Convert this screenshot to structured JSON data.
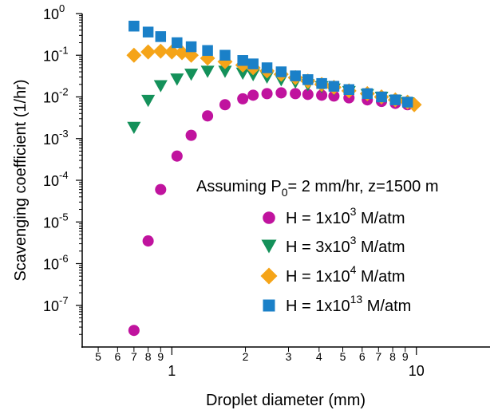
{
  "chart_data": {
    "type": "scatter",
    "xlabel": "Droplet diameter (mm)",
    "ylabel": "Scavenging coefficient (1/hr)",
    "xscale": "log",
    "yscale": "log",
    "xlim": [
      0.43,
      20
    ],
    "ylim": [
      1e-08,
      1
    ],
    "x_major_tick_labels": [
      "1",
      "10"
    ],
    "x_minor_tick_labels": [
      "5",
      "6",
      "7",
      "8",
      "9",
      "2",
      "3",
      "4",
      "5",
      "6",
      "7",
      "8",
      "9"
    ],
    "y_tick_labels": [
      {
        "base": "10",
        "exp": "0"
      },
      {
        "base": "10",
        "exp": "-1"
      },
      {
        "base": "10",
        "exp": "-2"
      },
      {
        "base": "10",
        "exp": "-3"
      },
      {
        "base": "10",
        "exp": "-4"
      },
      {
        "base": "10",
        "exp": "-5"
      },
      {
        "base": "10",
        "exp": "-6"
      },
      {
        "base": "10",
        "exp": "-7"
      }
    ],
    "grid": false,
    "annotation": {
      "prefix": "Assuming P",
      "sub": "0",
      "suffix": "= 2 mm/hr, z=1500 m"
    },
    "legend_placement": "lower-right",
    "series": [
      {
        "label_pre": "H = 1x10",
        "label_exp": "3",
        "label_post": " M/atm",
        "color": "#c0139e",
        "marker": "circle",
        "x": [
          0.7,
          0.8,
          0.9,
          1.05,
          1.2,
          1.4,
          1.65,
          1.95,
          2.15,
          2.45,
          2.8,
          3.2,
          3.6,
          4.1,
          4.6,
          5.3,
          6.3,
          7.2,
          8.2,
          9.2
        ],
        "y": [
          2.5e-08,
          3.5e-06,
          6e-05,
          0.00038,
          0.0012,
          0.0035,
          0.0065,
          0.009,
          0.011,
          0.012,
          0.0125,
          0.012,
          0.0115,
          0.011,
          0.0105,
          0.0095,
          0.0085,
          0.0078,
          0.007,
          0.0065
        ]
      },
      {
        "label_pre": "H = 3x10",
        "label_exp": "3",
        "label_post": " M/atm",
        "color": "#14915a",
        "marker": "triangle-down",
        "x": [
          0.7,
          0.8,
          0.9,
          1.05,
          1.2,
          1.4,
          1.65,
          1.95,
          2.15,
          2.45,
          2.8,
          3.2,
          3.6,
          4.1,
          4.6,
          5.3,
          6.3,
          7.2,
          8.2,
          9.2
        ],
        "y": [
          0.0018,
          0.008,
          0.018,
          0.026,
          0.034,
          0.04,
          0.04,
          0.036,
          0.033,
          0.029,
          0.025,
          0.022,
          0.019,
          0.017,
          0.015,
          0.013,
          0.011,
          0.0095,
          0.008,
          0.007
        ]
      },
      {
        "label_pre": "H = 1x10",
        "label_exp": "4",
        "label_post": " M/atm",
        "color": "#f5a418",
        "marker": "diamond",
        "x": [
          0.7,
          0.8,
          0.9,
          1.0,
          1.1,
          1.2,
          1.4,
          1.65,
          1.95,
          2.15,
          2.45,
          2.8,
          3.2,
          3.6,
          4.1,
          4.6,
          5.3,
          6.3,
          7.2,
          8.2,
          9.2,
          9.8
        ],
        "y": [
          0.1,
          0.12,
          0.125,
          0.12,
          0.115,
          0.1,
          0.085,
          0.07,
          0.058,
          0.05,
          0.042,
          0.035,
          0.029,
          0.024,
          0.02,
          0.017,
          0.014,
          0.012,
          0.01,
          0.0085,
          0.0075,
          0.0065
        ]
      },
      {
        "label_pre": "H = 1x10",
        "label_exp": "13",
        "label_post": " M/atm",
        "color": "#1a80c8",
        "marker": "square",
        "x": [
          0.7,
          0.8,
          0.9,
          1.05,
          1.2,
          1.4,
          1.65,
          1.95,
          2.15,
          2.45,
          2.8,
          3.2,
          3.6,
          4.1,
          4.6,
          5.3,
          6.3,
          7.2,
          8.2,
          9.2
        ],
        "y": [
          0.5,
          0.36,
          0.28,
          0.2,
          0.16,
          0.13,
          0.1,
          0.075,
          0.062,
          0.05,
          0.04,
          0.032,
          0.026,
          0.021,
          0.018,
          0.015,
          0.012,
          0.01,
          0.0085,
          0.0075
        ]
      }
    ]
  }
}
